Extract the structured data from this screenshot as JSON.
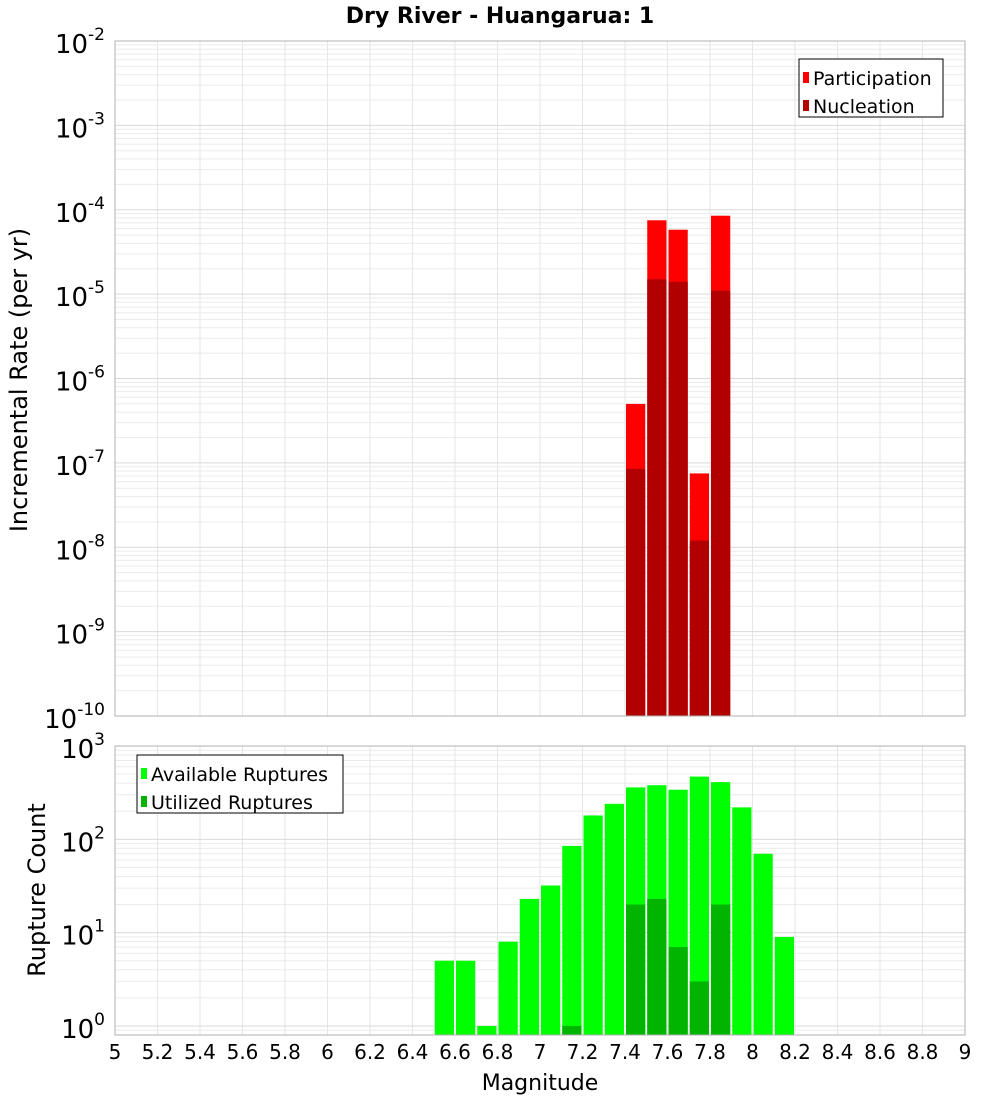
{
  "chart_data": [
    {
      "type": "bar",
      "title": "Dry River - Huangarua: 1",
      "ylabel": "Incremental Rate (per yr)",
      "xlabel": "",
      "yscale": "log",
      "ylim": [
        1e-10,
        0.01
      ],
      "xlim": [
        5,
        9
      ],
      "ytick_labels": [
        {
          "base": "10",
          "exp": "-10"
        },
        {
          "base": "10",
          "exp": "-9"
        },
        {
          "base": "10",
          "exp": "-8"
        },
        {
          "base": "10",
          "exp": "-7"
        },
        {
          "base": "10",
          "exp": "-6"
        },
        {
          "base": "10",
          "exp": "-5"
        },
        {
          "base": "10",
          "exp": "-4"
        },
        {
          "base": "10",
          "exp": "-3"
        },
        {
          "base": "10",
          "exp": "-2"
        }
      ],
      "grid": true,
      "legend_position": "top-right",
      "x": [
        7.45,
        7.55,
        7.65,
        7.75,
        7.85
      ],
      "series": [
        {
          "name": "Participation",
          "color": "#ff0000",
          "values": [
            5e-07,
            7.5e-05,
            5.8e-05,
            7.5e-08,
            8.5e-05
          ]
        },
        {
          "name": "Nucleation",
          "color": "#b20000",
          "values": [
            8.5e-08,
            1.5e-05,
            1.4e-05,
            1.2e-08,
            1.1e-05
          ]
        }
      ]
    },
    {
      "type": "bar",
      "ylabel": "Rupture Count",
      "xlabel": "Magnitude",
      "yscale": "log",
      "ylim": [
        0.8,
        1000
      ],
      "xlim": [
        5,
        9
      ],
      "ytick_labels": [
        {
          "base": "10",
          "exp": "0"
        },
        {
          "base": "10",
          "exp": "1"
        },
        {
          "base": "10",
          "exp": "2"
        },
        {
          "base": "10",
          "exp": "3"
        }
      ],
      "xtick_labels": [
        "5",
        "5.2",
        "5.4",
        "5.6",
        "5.8",
        "6",
        "6.2",
        "6.4",
        "6.6",
        "6.8",
        "7",
        "7.2",
        "7.4",
        "7.6",
        "7.8",
        "8",
        "8.2",
        "8.4",
        "8.6",
        "8.8",
        "9"
      ],
      "grid": true,
      "legend_position": "top-left",
      "x": [
        6.55,
        6.65,
        6.75,
        6.85,
        6.95,
        7.05,
        7.15,
        7.25,
        7.35,
        7.45,
        7.55,
        7.65,
        7.75,
        7.85,
        7.95,
        8.05,
        8.15
      ],
      "series": [
        {
          "name": "Available Ruptures",
          "color": "#00ff00",
          "values": [
            5,
            5,
            1,
            8,
            23,
            32,
            85,
            180,
            240,
            360,
            380,
            340,
            470,
            410,
            220,
            70,
            9
          ]
        },
        {
          "name": "Utilized Ruptures",
          "color": "#00b400",
          "values": [
            0,
            0,
            0,
            0,
            0,
            0,
            1,
            0,
            0,
            20,
            23,
            7,
            3,
            20,
            0,
            0,
            0
          ]
        }
      ]
    }
  ]
}
